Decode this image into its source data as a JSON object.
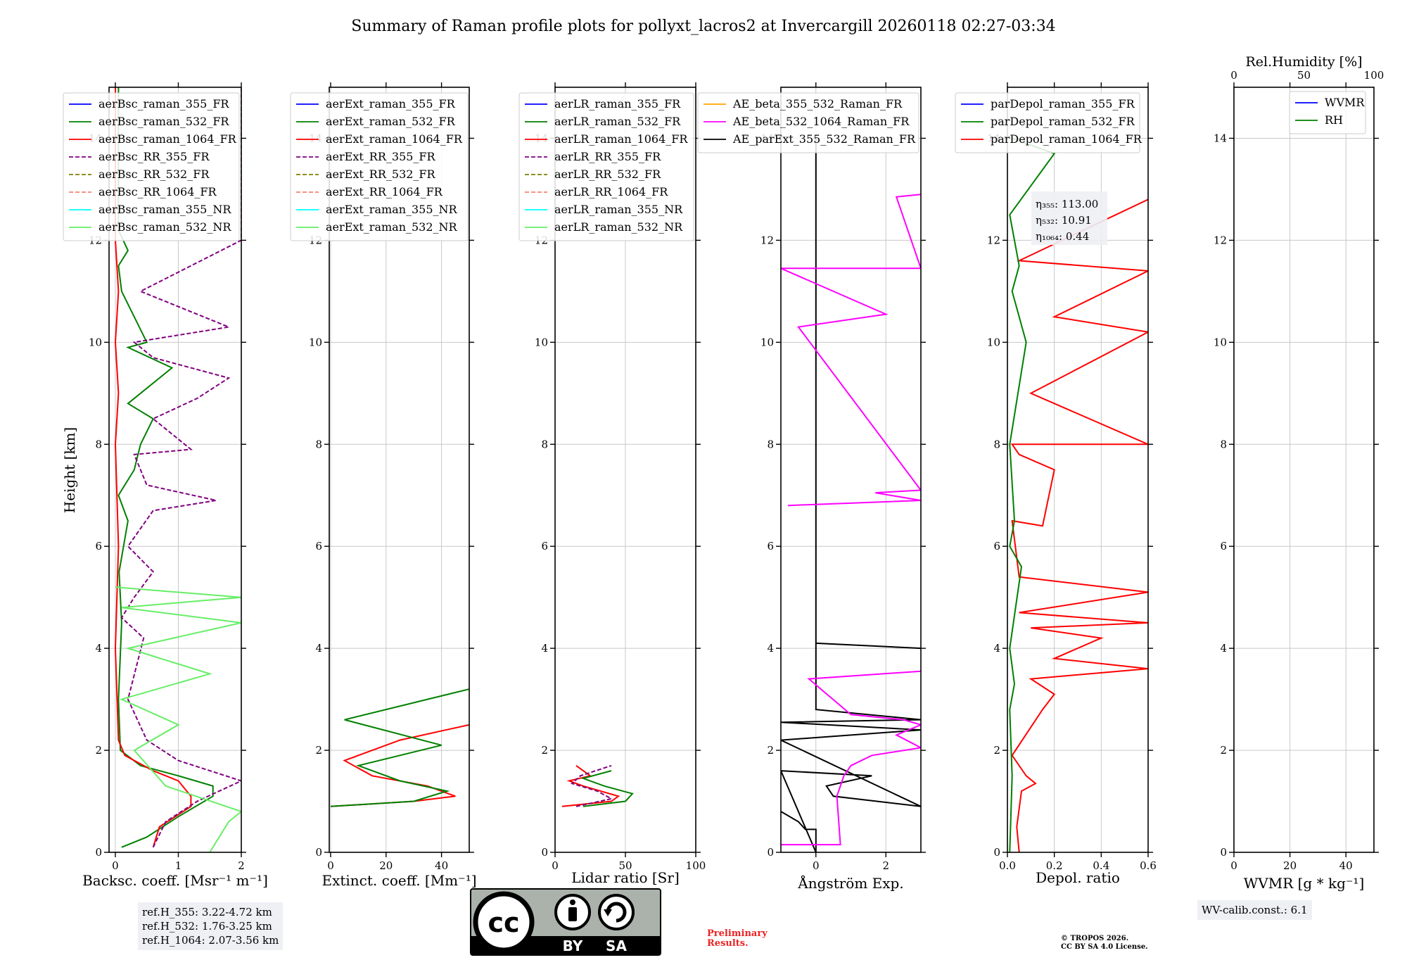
{
  "title": "Summary of Raman profile plots for pollyxt_lacros2 at Invercargill 20260118 02:27-03:34",
  "colors": {
    "blue": "#0000ff",
    "green": "#008000",
    "red": "#ff0000",
    "purple": "#800080",
    "olive": "#808000",
    "salmon": "#fa8072",
    "cyan": "#00ffff",
    "lightgreen": "#66ee66",
    "orange": "#ffa500",
    "magenta": "#ff00ff",
    "black": "#000000"
  },
  "chart_data": [
    {
      "type": "line",
      "panel": "backscatter",
      "ylabel": "Height [km]",
      "xlabel": "Backsc. coeff. [Msr⁻¹ m⁻¹]",
      "xlim": [
        -0.1,
        2
      ],
      "xticks": [
        "0",
        "1",
        "2"
      ],
      "ylim": [
        0,
        15
      ],
      "yticks": [
        "0",
        "2",
        "4",
        "6",
        "8",
        "10",
        "12",
        "14"
      ],
      "legend": [
        "aerBsc_raman_355_FR",
        "aerBsc_raman_532_FR",
        "aerBsc_raman_1064_FR",
        "aerBsc_RR_355_FR",
        "aerBsc_RR_532_FR",
        "aerBsc_RR_1064_FR",
        "aerBsc_raman_355_NR",
        "aerBsc_raman_532_NR"
      ],
      "series": [
        {
          "name": "aerBsc_raman_532_FR",
          "color": "green",
          "dash": false,
          "x": [
            0.1,
            0.5,
            1.0,
            1.55,
            1.55,
            1.0,
            0.4,
            0.08,
            0.05,
            0.1,
            0.06,
            0.2,
            0.05,
            0.3,
            0.4,
            0.6,
            0.2,
            0.9,
            0.2,
            0.5,
            0.1,
            0.05,
            0.2,
            0.05,
            0.05
          ],
          "y": [
            0.1,
            0.3,
            0.7,
            1.1,
            1.3,
            1.5,
            1.7,
            2.0,
            3.0,
            4.5,
            5.5,
            6.5,
            7.0,
            7.5,
            8.0,
            8.5,
            8.8,
            9.5,
            9.9,
            10.0,
            11.0,
            11.5,
            11.8,
            12.2,
            15.0
          ]
        },
        {
          "name": "aerBsc_raman_1064_FR",
          "color": "red",
          "dash": false,
          "x": [
            0.6,
            0.7,
            1.2,
            1.2,
            1.0,
            0.6,
            0.15,
            0.05,
            0.0,
            0.05,
            0.0,
            0.05,
            0.0,
            0.05,
            0.0,
            0.0
          ],
          "y": [
            0.1,
            0.5,
            0.9,
            1.1,
            1.4,
            1.6,
            1.9,
            2.2,
            4.0,
            6.0,
            8.0,
            9.0,
            10.0,
            11.0,
            12.0,
            15.0
          ]
        },
        {
          "name": "aerBsc_RR_355_FR",
          "color": "purple",
          "dash": true,
          "x": [
            0.6,
            0.8,
            1.3,
            2.0,
            1.0,
            0.5,
            0.2,
            0.45,
            0.1,
            0.3,
            0.6,
            0.2,
            0.6,
            1.6,
            0.5,
            0.3,
            1.2,
            0.6,
            1.3,
            1.8,
            0.6,
            0.3,
            1.8,
            0.4,
            2.0,
            2.0
          ],
          "y": [
            0.1,
            0.6,
            1.0,
            1.4,
            1.8,
            2.2,
            3.0,
            4.2,
            4.6,
            5.0,
            5.5,
            6.0,
            6.7,
            6.9,
            7.2,
            7.8,
            7.9,
            8.5,
            8.9,
            9.3,
            9.7,
            10.0,
            10.3,
            11.0,
            12.0,
            15.0
          ]
        },
        {
          "name": "aerBsc_raman_532_NR",
          "color": "lightgreen",
          "dash": false,
          "x": [
            1.5,
            1.8,
            2.0,
            0.8,
            0.3,
            1.0,
            0.1,
            1.5,
            0.2,
            2.0,
            0.1,
            2.0,
            0.0
          ],
          "y": [
            0.0,
            0.6,
            0.8,
            1.3,
            2.0,
            2.5,
            3.0,
            3.5,
            4.0,
            4.5,
            4.8,
            5.0,
            5.2
          ]
        }
      ]
    },
    {
      "type": "line",
      "panel": "extinction",
      "xlabel": "Extinct. coeff. [Mm⁻¹]",
      "xlim": [
        -0.5,
        50
      ],
      "xticks": [
        "0",
        "20",
        "40"
      ],
      "ylim": [
        0,
        15
      ],
      "yticks": [
        "0",
        "2",
        "4",
        "6",
        "8",
        "10",
        "12",
        "14"
      ],
      "legend": [
        "aerExt_raman_355_FR",
        "aerExt_raman_532_FR",
        "aerExt_raman_1064_FR",
        "aerExt_RR_355_FR",
        "aerExt_RR_532_FR",
        "aerExt_RR_1064_FR",
        "aerExt_raman_355_NR",
        "aerExt_raman_532_NR"
      ],
      "series": [
        {
          "name": "aerExt_raman_1064_FR",
          "color": "red",
          "dash": false,
          "x": [
            0,
            30,
            45,
            35,
            15,
            5,
            25,
            50
          ],
          "y": [
            0.9,
            1.0,
            1.1,
            1.3,
            1.5,
            1.8,
            2.2,
            2.5
          ]
        },
        {
          "name": "aerExt_raman_532_FR",
          "color": "green",
          "dash": false,
          "x": [
            0,
            30,
            42,
            25,
            10,
            40,
            5,
            50
          ],
          "y": [
            0.9,
            1.0,
            1.2,
            1.4,
            1.7,
            2.1,
            2.6,
            3.2
          ]
        }
      ]
    },
    {
      "type": "line",
      "panel": "lidar_ratio",
      "xlabel": "Lidar ratio [Sr]",
      "xlim": [
        0,
        100
      ],
      "xticks": [
        "0",
        "50",
        "100"
      ],
      "ylim": [
        0,
        15
      ],
      "yticks": [
        "0",
        "2",
        "4",
        "6",
        "8",
        "10",
        "12",
        "14"
      ],
      "legend": [
        "aerLR_raman_355_FR",
        "aerLR_raman_532_FR",
        "aerLR_raman_1064_FR",
        "aerLR_RR_355_FR",
        "aerLR_RR_532_FR",
        "aerLR_RR_1064_FR",
        "aerLR_raman_355_NR",
        "aerLR_raman_532_NR"
      ],
      "series": [
        {
          "name": "aerLR_raman_1064_FR",
          "color": "red",
          "dash": false,
          "x": [
            5,
            40,
            45,
            20,
            10,
            25,
            15
          ],
          "y": [
            0.9,
            1.0,
            1.1,
            1.3,
            1.4,
            1.5,
            1.7
          ]
        },
        {
          "name": "aerLR_raman_532_FR",
          "color": "green",
          "dash": false,
          "x": [
            20,
            50,
            55,
            35,
            20,
            40
          ],
          "y": [
            0.9,
            1.0,
            1.15,
            1.3,
            1.45,
            1.6
          ]
        },
        {
          "name": "aerLR_RR_355_FR",
          "color": "purple",
          "dash": true,
          "x": [
            15,
            40,
            30,
            12,
            18,
            40
          ],
          "y": [
            0.9,
            1.05,
            1.2,
            1.35,
            1.5,
            1.7
          ]
        }
      ]
    },
    {
      "type": "line",
      "panel": "angstrom",
      "xlabel": "Ångström Exp.",
      "xlim": [
        -1,
        3
      ],
      "xticks": [
        "0",
        "2"
      ],
      "ylim": [
        0,
        15
      ],
      "yticks": [
        "0",
        "2",
        "4",
        "6",
        "8",
        "10",
        "12",
        "14"
      ],
      "legend": [
        "AE_beta_355_532_Raman_FR",
        "AE_beta_532_1064_Raman_FR",
        "AE_parExt_355_532_Raman_FR"
      ],
      "series": [
        {
          "name": "AE_parExt_355_532_Raman_FR",
          "color": "black",
          "dash": false,
          "x": [
            -1,
            -0.5,
            -0.3,
            0.0,
            0.0,
            -1,
            1.6,
            0.3,
            0.5,
            3.0,
            -1,
            3.0,
            -1,
            3.0,
            0.0,
            0.0,
            0.0,
            3.0,
            0.0,
            0.0
          ],
          "y": [
            0.8,
            0.6,
            0.45,
            0.45,
            0.0,
            1.6,
            1.5,
            1.3,
            1.1,
            0.9,
            2.2,
            2.4,
            2.55,
            2.6,
            2.8,
            4.1,
            4.1,
            4.0,
            4.1,
            14.0
          ]
        },
        {
          "name": "AE_beta_532_1064_Raman_FR",
          "color": "magenta",
          "dash": false,
          "x": [
            -1,
            0.7,
            0.6,
            0.8,
            1.0,
            1.6,
            3.0,
            2.3,
            3.0,
            2.5,
            1.0,
            -0.2,
            3.0
          ],
          "y": [
            0.15,
            0.15,
            1.1,
            1.5,
            1.7,
            1.9,
            2.05,
            2.3,
            2.5,
            2.6,
            2.7,
            3.4,
            3.55
          ]
        },
        {
          "name": "AE_beta_532_1064_Raman_FR_upper",
          "color": "magenta",
          "dash": false,
          "x": [
            -0.8,
            3.0,
            1.7,
            3.0,
            -0.5,
            2.0,
            -1,
            3.0,
            2.3,
            3.0
          ],
          "y": [
            6.8,
            6.9,
            7.05,
            7.1,
            10.3,
            10.55,
            11.45,
            11.45,
            12.85,
            12.9
          ]
        }
      ]
    },
    {
      "type": "line",
      "panel": "depolarization",
      "xlabel": "Depol. ratio",
      "xlim": [
        0,
        0.6
      ],
      "xticks": [
        "0.0",
        "0.2",
        "0.4",
        "0.6"
      ],
      "ylim": [
        0,
        15
      ],
      "yticks": [
        "0",
        "2",
        "4",
        "6",
        "8",
        "10",
        "12",
        "14"
      ],
      "legend": [
        "parDepol_raman_355_FR",
        "parDepol_raman_532_FR",
        "parDepol_raman_1064_FR"
      ],
      "annotations": [
        {
          "label": "η₃₅₅: 113.00"
        },
        {
          "label": "η₅₃₂: 10.91"
        },
        {
          "label": "η₁₀₆₄: 0.44"
        }
      ],
      "series": [
        {
          "name": "parDepol_raman_1064_FR",
          "color": "red",
          "dash": false,
          "x": [
            0.05,
            0.04,
            0.06,
            0.12,
            0.08,
            0.02,
            0.15,
            0.2,
            0.1,
            0.6,
            0.2,
            0.4,
            0.1,
            0.6,
            0.05,
            0.6,
            0.05,
            0.02,
            0.15,
            0.2,
            0.05,
            0.02,
            0.6,
            0.1,
            0.6,
            0.2,
            0.6,
            0.05,
            0.6
          ],
          "y": [
            0.0,
            0.5,
            1.2,
            1.35,
            1.5,
            1.9,
            2.8,
            3.1,
            3.4,
            3.6,
            3.8,
            4.2,
            4.4,
            4.5,
            4.7,
            5.1,
            5.4,
            6.5,
            6.4,
            7.5,
            7.8,
            8.0,
            8.0,
            9.0,
            10.2,
            10.5,
            11.4,
            11.6,
            12.8
          ]
        },
        {
          "name": "parDepol_raman_532_FR",
          "color": "green",
          "dash": false,
          "x": [
            0.01,
            0.02,
            0.01,
            0.03,
            0.01,
            0.06,
            0.01,
            0.03,
            0.01,
            0.08,
            0.02,
            0.05,
            0.01,
            0.2,
            0.02
          ],
          "y": [
            0.0,
            1.5,
            2.8,
            3.3,
            4.0,
            5.6,
            6.0,
            6.5,
            8.0,
            10.0,
            11.0,
            11.5,
            12.5,
            13.7,
            14.0
          ]
        }
      ]
    },
    {
      "type": "line",
      "panel": "water_vapor",
      "xlabel": "WVMR [g * kg⁻¹]",
      "xlim": [
        0,
        50
      ],
      "xticks": [
        "0",
        "20",
        "40"
      ],
      "x2label": "Rel.Humidity [%]",
      "x2lim": [
        0,
        100
      ],
      "x2ticks": [
        "0",
        "50",
        "100"
      ],
      "ylim": [
        0,
        15
      ],
      "yticks": [
        "0",
        "2",
        "4",
        "6",
        "8",
        "10",
        "12",
        "14"
      ],
      "legend": [
        "WVMR",
        "RH"
      ],
      "series": []
    }
  ],
  "ref_heights": [
    "ref.H_355: 3.22-4.72 km",
    "ref.H_532: 1.76-3.25 km",
    "ref.H_1064: 2.07-3.56 km"
  ],
  "calib": "WV-calib.const.: 6.1",
  "license": {
    "cc": "cc",
    "by": "BY",
    "sa": "SA"
  },
  "preliminary": [
    "Preliminary",
    "Results."
  ],
  "copyright": [
    "© TROPOS 2026.",
    "CC BY SA 4.0 License."
  ]
}
